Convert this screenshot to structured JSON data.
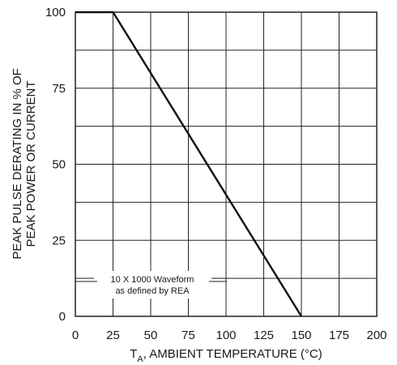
{
  "chart_data": {
    "type": "line",
    "title": "",
    "xlabel": {
      "prefix": "T",
      "subscript": "A",
      "suffix": ", AMBIENT TEMPERATURE (°C)"
    },
    "ylabel_lines": [
      "PEAK PULSE DERATING IN % OF",
      "PEAK POWER OR CURRENT"
    ],
    "xlim": [
      0,
      200
    ],
    "ylim": [
      0,
      100
    ],
    "x_ticks": [
      0,
      25,
      50,
      75,
      100,
      125,
      150,
      175,
      200
    ],
    "y_ticks": [
      0,
      25,
      50,
      75,
      100
    ],
    "x_tick_labels": [
      "0",
      "25",
      "50",
      "75",
      "100",
      "125",
      "150",
      "175",
      "200"
    ],
    "y_tick_labels": [
      "0",
      "25",
      "50",
      "75",
      "100"
    ],
    "x_grid": [
      0,
      25,
      50,
      75,
      100,
      125,
      150,
      175,
      200
    ],
    "y_grid": [
      0,
      12.5,
      25,
      37.5,
      50,
      62.5,
      75,
      87.5,
      100
    ],
    "grid": true,
    "series": [
      {
        "x": [
          0,
          25,
          150
        ],
        "y": [
          100,
          100,
          0
        ]
      }
    ],
    "annotation": {
      "lines": [
        "10 X 1000 Waveform",
        "as defined by REA"
      ]
    }
  }
}
